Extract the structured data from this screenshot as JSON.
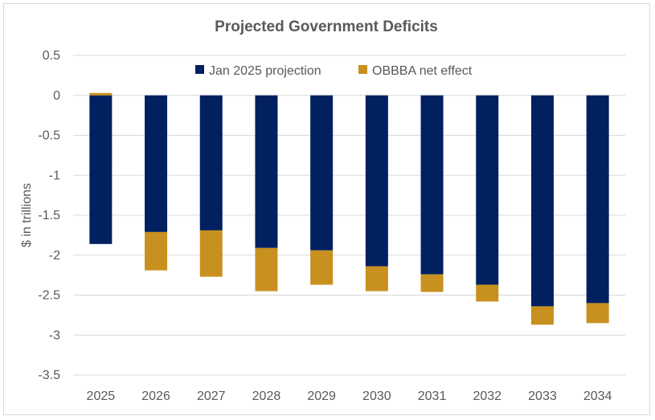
{
  "chart_data": {
    "type": "bar",
    "stacked": true,
    "title": "Projected Government Deficits",
    "xlabel": "",
    "ylabel": "$ in trillions",
    "ylim": [
      -3.5,
      0.5
    ],
    "yticks": [
      0.5,
      0,
      -0.5,
      -1,
      -1.5,
      -2,
      -2.5,
      -3,
      -3.5
    ],
    "ytick_labels": [
      "0.5",
      "0",
      "-0.5",
      "-1",
      "-1.5",
      "-2",
      "-2.5",
      "-3",
      "-3.5"
    ],
    "categories": [
      "2025",
      "2026",
      "2027",
      "2028",
      "2029",
      "2030",
      "2031",
      "2032",
      "2033",
      "2034"
    ],
    "series": [
      {
        "name": "Jan 2025 projection",
        "color": "#002060",
        "values": [
          -1.86,
          -1.71,
          -1.69,
          -1.91,
          -1.94,
          -2.14,
          -2.24,
          -2.37,
          -2.64,
          -2.6
        ]
      },
      {
        "name": "OBBBA net effect",
        "color": "#C8901E",
        "values": [
          0.03,
          -0.48,
          -0.58,
          -0.54,
          -0.43,
          -0.31,
          -0.22,
          -0.21,
          -0.23,
          -0.25
        ]
      }
    ],
    "grid": true,
    "legend_position": "top"
  }
}
